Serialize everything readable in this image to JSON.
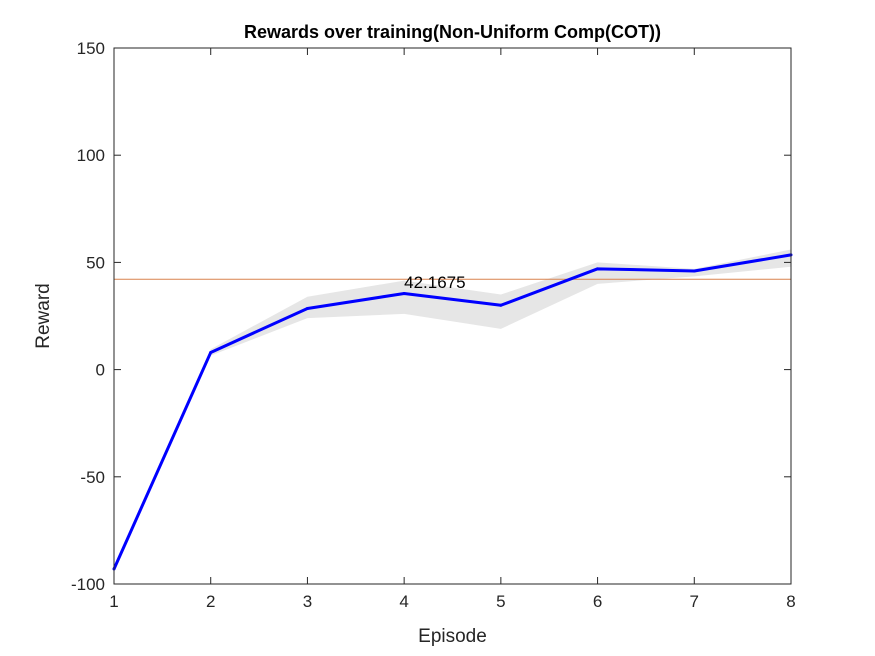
{
  "chart_data": {
    "type": "line",
    "title": "Rewards over training(Non-Uniform Comp(COT))",
    "xlabel": "Episode",
    "ylabel": "Reward",
    "xlim": [
      1,
      8
    ],
    "ylim": [
      -100,
      150
    ],
    "xticks": [
      1,
      2,
      3,
      4,
      5,
      6,
      7,
      8
    ],
    "yticks": [
      -100,
      -50,
      0,
      50,
      100,
      150
    ],
    "grid": false,
    "x": [
      1,
      2,
      3,
      4,
      5,
      6,
      7,
      8
    ],
    "series": [
      {
        "values": [
          -93,
          8,
          28.5,
          35.5,
          30,
          47,
          46,
          53.5
        ],
        "color": "#0000ff"
      }
    ],
    "band": {
      "upper": [
        -93,
        9.5,
        34,
        41.5,
        35,
        50,
        47,
        56
      ],
      "lower": [
        -93,
        6.5,
        24,
        26,
        19,
        40,
        43.5,
        48
      ],
      "color": "#e6e6e6"
    },
    "reference_line": {
      "y": 42.1675,
      "color": "#d9824f"
    },
    "annotation": {
      "text": "42.1675",
      "x": 4,
      "y": 42.1675
    }
  }
}
